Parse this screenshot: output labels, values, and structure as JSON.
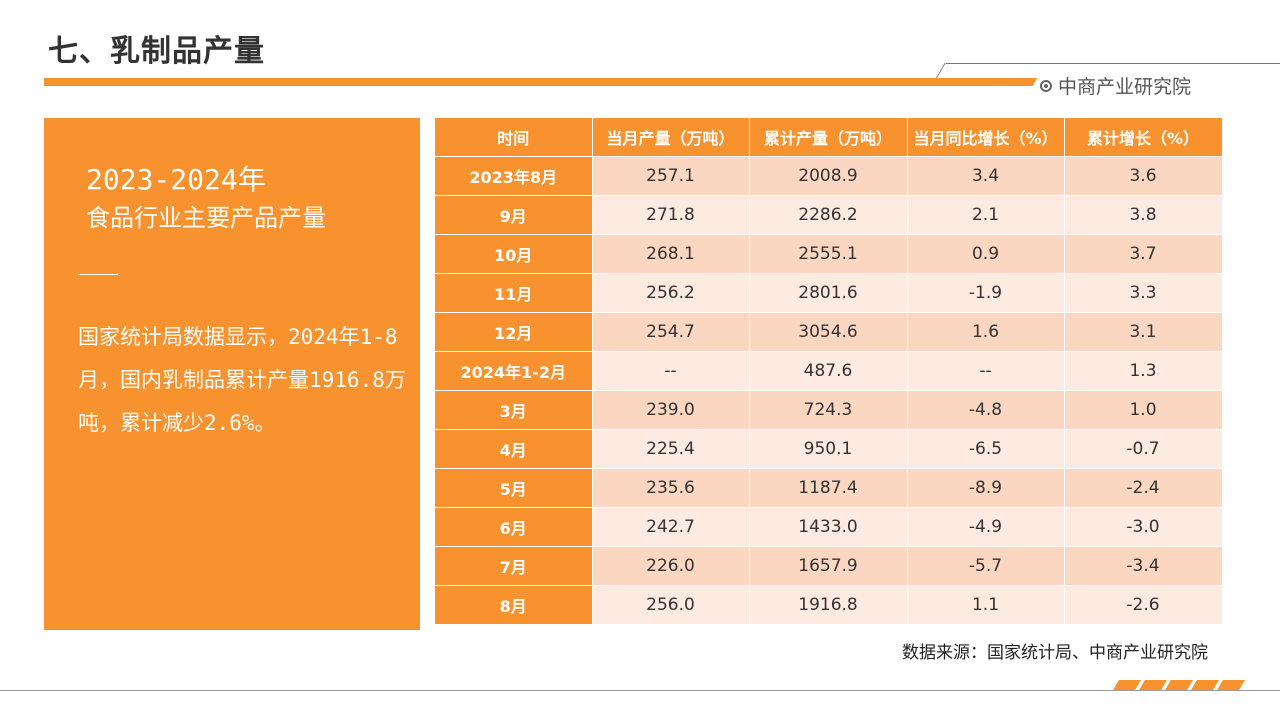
{
  "title": "七、乳制品产量",
  "brand": "中商产业研究院",
  "panel": {
    "heading": "2023-2024年",
    "subheading": "食品行业主要产品产量",
    "text": "国家统计局数据显示，2024年1-8月，国内乳制品累计产量1916.8万吨，累计减少2.6%。"
  },
  "table": {
    "headers": [
      "时间",
      "当月产量（万吨）",
      "累计产量（万吨）",
      "当月同比增长（%）",
      "累计增长（%）"
    ],
    "rows": [
      [
        "2023年8月",
        "257.1",
        "2008.9",
        "3.4",
        "3.6"
      ],
      [
        "9月",
        "271.8",
        "2286.2",
        "2.1",
        "3.8"
      ],
      [
        "10月",
        "268.1",
        "2555.1",
        "0.9",
        "3.7"
      ],
      [
        "11月",
        "256.2",
        "2801.6",
        "-1.9",
        "3.3"
      ],
      [
        "12月",
        "254.7",
        "3054.6",
        "1.6",
        "3.1"
      ],
      [
        "2024年1-2月",
        "--",
        "487.6",
        "--",
        "1.3"
      ],
      [
        "3月",
        "239.0",
        "724.3",
        "-4.8",
        "1.0"
      ],
      [
        "4月",
        "225.4",
        "950.1",
        "-6.5",
        "-0.7"
      ],
      [
        "5月",
        "235.6",
        "1187.4",
        "-8.9",
        "-2.4"
      ],
      [
        "6月",
        "242.7",
        "1433.0",
        "-4.9",
        "-3.0"
      ],
      [
        "7月",
        "226.0",
        "1657.9",
        "-5.7",
        "-3.4"
      ],
      [
        "8月",
        "256.0",
        "1916.8",
        "1.1",
        "-2.6"
      ]
    ]
  },
  "source": "数据来源：国家统计局、中商产业研究院",
  "colors": {
    "accent": "#f7922e",
    "row_dark": "#fbd7c2",
    "row_light": "#fdebe1"
  }
}
